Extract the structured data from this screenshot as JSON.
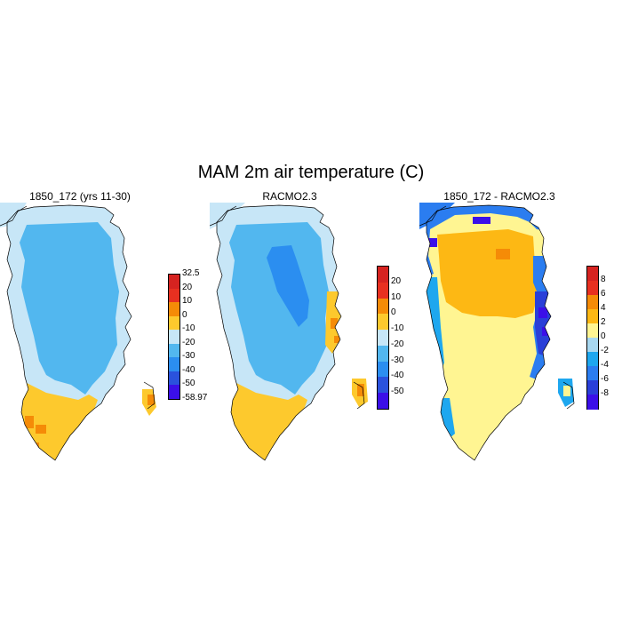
{
  "title": "MAM 2m air temperature (C)",
  "panels": [
    {
      "title": "1850_172 (yrs 11-30)",
      "fill": "model",
      "colorbar": {
        "labels": [
          "32.5",
          "20",
          "10",
          "0",
          "-10",
          "-20",
          "-30",
          "-40",
          "-50",
          "-58.97"
        ],
        "colors": [
          "#d62320",
          "#e83020",
          "#f58b07",
          "#fdc92d",
          "#c7e6f7",
          "#52b7ef",
          "#2b8ef0",
          "#2a52dd",
          "#3b0fe8"
        ]
      }
    },
    {
      "title": "RACMO2.3",
      "fill": "racmo",
      "colorbar": {
        "labels": [
          "20",
          "10",
          "0",
          "-10",
          "-20",
          "-30",
          "-40",
          "-50"
        ],
        "colors": [
          "#d62320",
          "#e83020",
          "#f58b07",
          "#fdc92d",
          "#c7e6f7",
          "#52b7ef",
          "#2b8ef0",
          "#2a52dd",
          "#3b0fe8"
        ]
      }
    },
    {
      "title": "1850_172 - RACMO2.3",
      "fill": "diff",
      "colorbar": {
        "labels": [
          "8",
          "6",
          "4",
          "2",
          "0",
          "-2",
          "-4",
          "-6",
          "-8"
        ],
        "colors": [
          "#d62320",
          "#e83020",
          "#f58b07",
          "#fdb814",
          "#fff592",
          "#a8d8f0",
          "#1ea7ef",
          "#2b7df0",
          "#2a3fd8",
          "#3b0fe8"
        ]
      }
    }
  ]
}
